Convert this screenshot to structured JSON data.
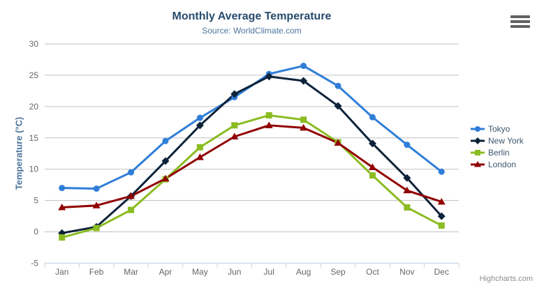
{
  "chart_data": {
    "type": "line",
    "title": "Monthly Average Temperature",
    "subtitle": "Source: WorldClimate.com",
    "xlabel": "",
    "ylabel": "Temperature (°C)",
    "ylim": [
      -5,
      30
    ],
    "ytick_interval": 5,
    "yticks": [
      -5,
      0,
      5,
      10,
      15,
      20,
      25,
      30
    ],
    "grid": true,
    "legend_position": "right",
    "categories": [
      "Jan",
      "Feb",
      "Mar",
      "Apr",
      "May",
      "Jun",
      "Jul",
      "Aug",
      "Sep",
      "Oct",
      "Nov",
      "Dec"
    ],
    "series": [
      {
        "name": "Tokyo",
        "color": "#2f7ed8",
        "marker": "circle",
        "values": [
          7.0,
          6.9,
          9.5,
          14.5,
          18.2,
          21.5,
          25.2,
          26.5,
          23.3,
          18.3,
          13.9,
          9.6
        ]
      },
      {
        "name": "New York",
        "color": "#0d233a",
        "marker": "diamond",
        "values": [
          -0.2,
          0.8,
          5.7,
          11.3,
          17.0,
          22.0,
          24.8,
          24.1,
          20.1,
          14.1,
          8.6,
          2.5
        ]
      },
      {
        "name": "Berlin",
        "color": "#8bbc21",
        "marker": "square",
        "values": [
          -0.9,
          0.6,
          3.5,
          8.4,
          13.5,
          17.0,
          18.6,
          17.9,
          14.3,
          9.0,
          3.9,
          1.0
        ]
      },
      {
        "name": "London",
        "color": "#910000",
        "marker": "triangle",
        "values": [
          3.9,
          4.2,
          5.7,
          8.5,
          11.9,
          15.2,
          17.0,
          16.6,
          14.2,
          10.3,
          6.6,
          4.8
        ]
      }
    ]
  },
  "ui": {
    "credits": "Highcharts.com",
    "menu_icon": "hamburger-menu-icon"
  },
  "colors": {
    "background": "#FFFFFF",
    "title": "#274b6d",
    "subtitle": "#4d759e",
    "axis_title": "#4d759e",
    "tick_label": "#666666",
    "grid_line": "#C0C0C0",
    "axis_line": "#C0D0E0",
    "legend_text": "#3E576F",
    "credits": "#8E8E8E",
    "menu_icon": "#616161"
  }
}
